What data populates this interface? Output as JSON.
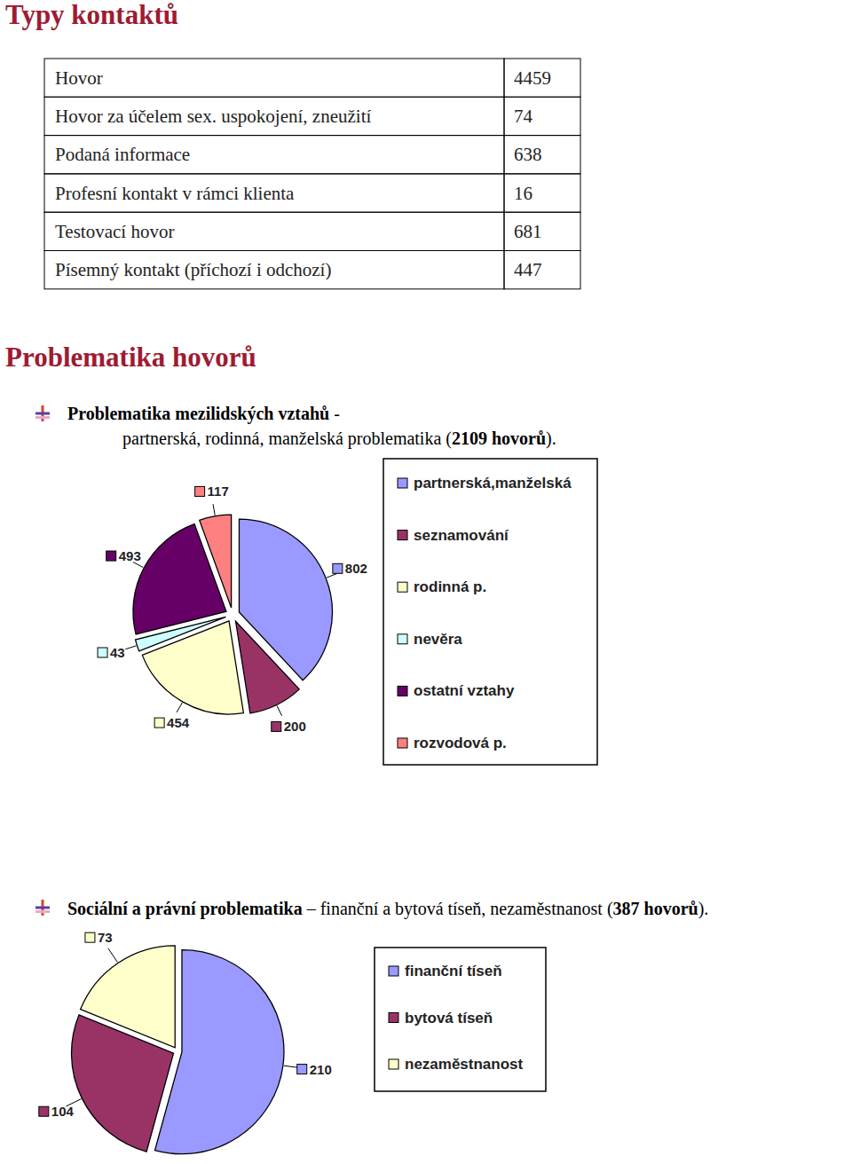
{
  "title": "Typy kontaktů",
  "table": {
    "rows": [
      [
        "Hovor",
        4459
      ],
      [
        "Hovor za účelem sex. uspokojení, zneužití",
        74
      ],
      [
        "Podaná informace",
        638
      ],
      [
        "Profesní kontakt v rámci klienta",
        16
      ],
      [
        "Testovací hovor",
        681
      ],
      [
        "Písemný kontakt (příchozí i odchozí)",
        447
      ]
    ]
  },
  "section_title": "Problematika hovorů",
  "chart_headings": [
    [
      [
        {
          "text": "Problematika mezilidských vztahů",
          "bold": true
        },
        {
          "text": " -",
          "bold": false
        }
      ],
      [
        {
          "text": "partnerská, rodinná, manželská problematika (",
          "bold": false
        },
        {
          "text": "2109 hovorů",
          "bold": true
        },
        {
          "text": ").",
          "bold": false
        }
      ]
    ],
    [
      [
        {
          "text": "Sociální a právní problematika",
          "bold": true
        },
        {
          "text": " – finanční a bytová tíseň, nezaměstnanost (",
          "bold": false
        },
        {
          "text": "387 hovorů",
          "bold": true
        },
        {
          "text": ").",
          "bold": false
        }
      ]
    ]
  ],
  "chart_data": [
    {
      "type": "pie",
      "categories": [
        "partnerská,manželská",
        "seznamování",
        "rodinná p.",
        "nevěra",
        "ostatní vztahy",
        "rozvodová p."
      ],
      "values": [
        802,
        200,
        454,
        43,
        493,
        117
      ],
      "colors": [
        "#9999ff",
        "#993366",
        "#ffffcc",
        "#ccffff",
        "#660066",
        "#ff8080"
      ],
      "data_labels": true,
      "legend": "right"
    },
    {
      "type": "pie",
      "categories": [
        "finanční tíseň",
        "bytová tíseň",
        "nezaměstnanost"
      ],
      "values": [
        210,
        104,
        73
      ],
      "colors": [
        "#9999ff",
        "#993366",
        "#ffffcc"
      ],
      "data_labels": true,
      "legend": "right"
    }
  ]
}
